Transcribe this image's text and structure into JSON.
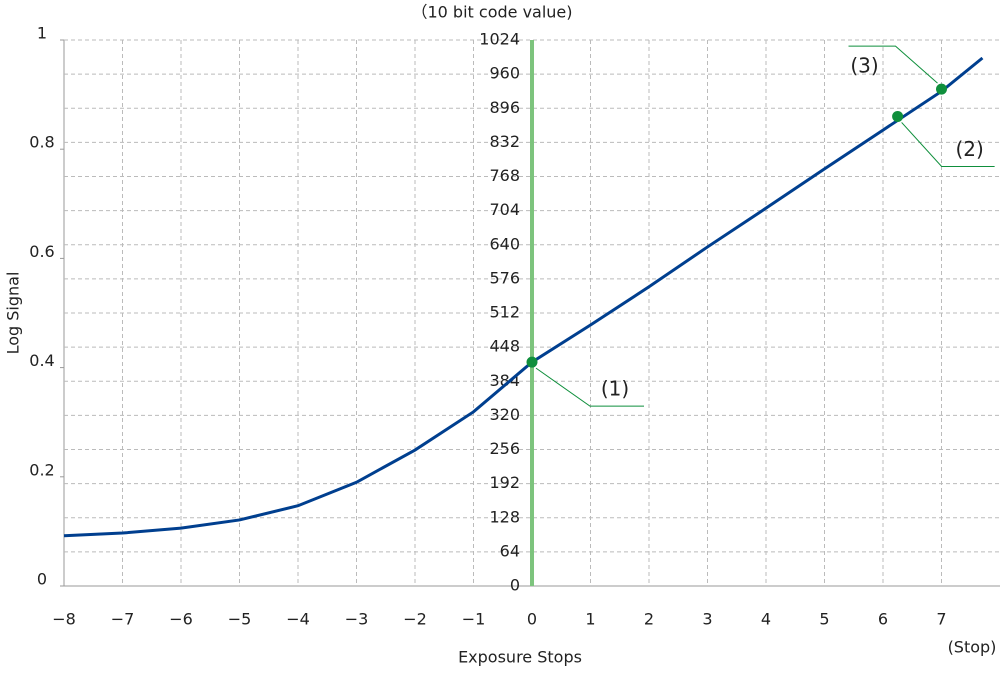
{
  "chart_data": {
    "type": "line",
    "x_label": "Exposure Stops",
    "x_unit": "(Stop)",
    "y_label": "Log Signal",
    "y2_label": "（10 bit code value)",
    "xlim": [
      -8,
      8
    ],
    "xticks": [
      {
        "value": -8,
        "label": "−8"
      },
      {
        "value": -7,
        "label": "−7"
      },
      {
        "value": -6,
        "label": "−6"
      },
      {
        "value": -5,
        "label": "−5"
      },
      {
        "value": -4,
        "label": "−4"
      },
      {
        "value": -3,
        "label": "−3"
      },
      {
        "value": -2,
        "label": "−2"
      },
      {
        "value": -1,
        "label": "−1"
      },
      0,
      1,
      2,
      3,
      4,
      5,
      6,
      7
    ],
    "ylim": [
      0,
      1
    ],
    "yticks": [
      0,
      0.2,
      0.4,
      0.6,
      0.8,
      1
    ],
    "y2lim": [
      0,
      1024
    ],
    "y2ticks": [
      0,
      64,
      128,
      192,
      256,
      320,
      384,
      448,
      512,
      576,
      640,
      704,
      768,
      832,
      896,
      960,
      1024
    ],
    "grid": true,
    "vline": 0,
    "vline_color": "#7dc47d",
    "series": [
      {
        "color": "#003f8f",
        "x": [
          -8,
          -7,
          -6,
          -5,
          -4,
          -3,
          -2,
          -1,
          0,
          1,
          2,
          3,
          4,
          5,
          6,
          7,
          7.7
        ],
        "values": [
          0.092,
          0.097,
          0.106,
          0.121,
          0.147,
          0.19,
          0.249,
          0.319,
          0.41,
          0.478,
          0.548,
          0.621,
          0.692,
          0.764,
          0.835,
          0.906,
          0.967
        ]
      }
    ],
    "points": {
      "color": "#0f8f3c",
      "x": [
        0,
        6.25,
        7
      ],
      "values": [
        0.41,
        0.86,
        0.91
      ],
      "labels": [
        "(1)",
        "(2)",
        "(3)"
      ]
    }
  }
}
